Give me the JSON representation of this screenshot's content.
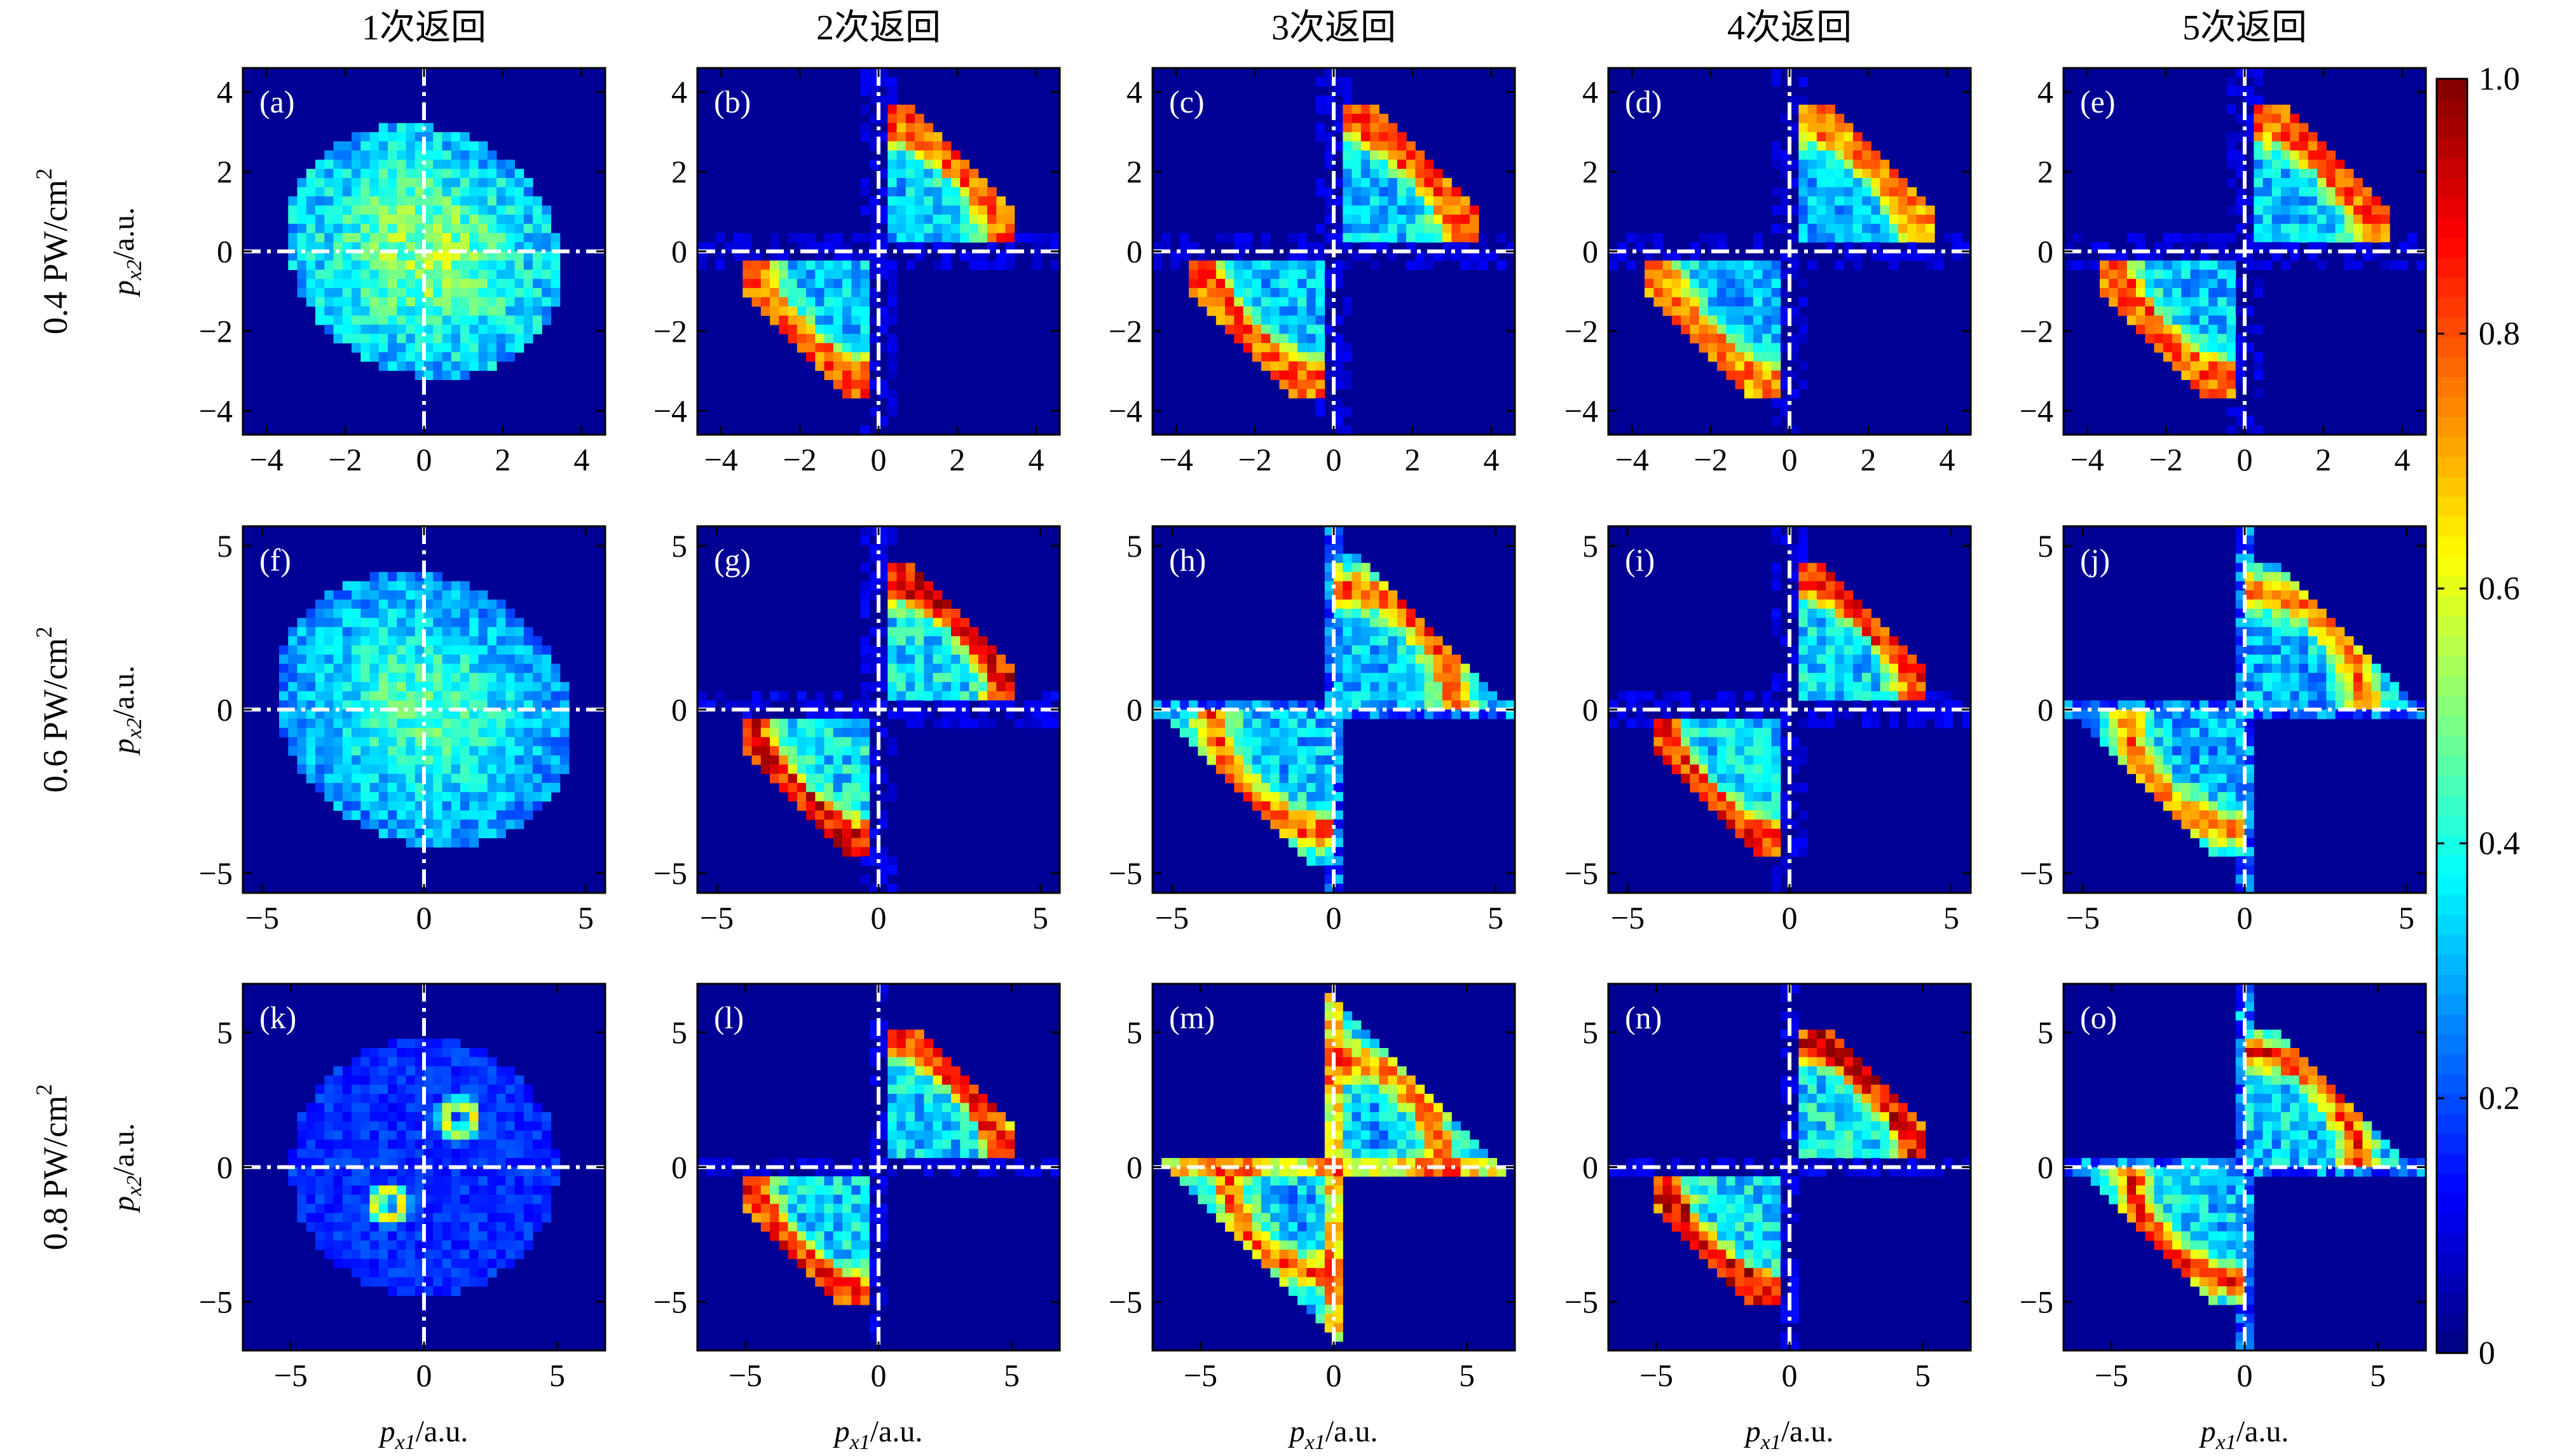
{
  "chart_data": {
    "type": "heatmap",
    "description_grid": "5 columns x 3 rows of 2D momentum correlation density maps",
    "column_titles": [
      "1次返回",
      "2次返回",
      "3次返回",
      "4次返回",
      "5次返回"
    ],
    "row_labels": [
      {
        "value": "0.4",
        "unit": "PW/cm",
        "sup": "2"
      },
      {
        "value": "0.6",
        "unit": "PW/cm",
        "sup": "2"
      },
      {
        "value": "0.8",
        "unit": "PW/cm",
        "sup": "2"
      }
    ],
    "xlabel": {
      "var": "p",
      "sub": "x1",
      "unit": "/a.u."
    },
    "ylabel": {
      "var": "p",
      "sub": "x2",
      "unit": "/a.u."
    },
    "rows": [
      {
        "lim": [
          -4.6,
          4.6
        ],
        "ticks": [
          -4,
          -2,
          0,
          2,
          4
        ],
        "xlim": [
          -4.6,
          4.6
        ]
      },
      {
        "lim": [
          -5.6,
          5.6
        ],
        "ticks": [
          -5,
          0,
          5
        ],
        "xlim": [
          -5.6,
          5.6
        ]
      },
      {
        "lim": [
          -6.8,
          6.8
        ],
        "ticks": [
          -5,
          0,
          5
        ],
        "xlim": [
          -6.8,
          6.8
        ]
      }
    ],
    "panel_labels": [
      "(a)",
      "(b)",
      "(c)",
      "(d)",
      "(e)",
      "(f)",
      "(g)",
      "(h)",
      "(i)",
      "(j)",
      "(k)",
      "(l)",
      "(m)",
      "(n)",
      "(o)"
    ],
    "panels": [
      {
        "id": "a",
        "row": 0,
        "col": 0,
        "pattern": "blob",
        "r": 3.2,
        "peak": 0.7
      },
      {
        "id": "b",
        "row": 0,
        "col": 1,
        "pattern": "split-two",
        "scale": 3.5,
        "peak": 0.85
      },
      {
        "id": "c",
        "row": 0,
        "col": 2,
        "pattern": "split-two-wide",
        "scale": 3.6,
        "peak": 0.85
      },
      {
        "id": "d",
        "row": 0,
        "col": 3,
        "pattern": "split-two",
        "scale": 3.6,
        "peak": 0.8
      },
      {
        "id": "e",
        "row": 0,
        "col": 4,
        "pattern": "split-two",
        "scale": 3.6,
        "peak": 0.85
      },
      {
        "id": "f",
        "row": 1,
        "col": 0,
        "pattern": "blob",
        "r": 4.2,
        "peak": 0.6
      },
      {
        "id": "g",
        "row": 1,
        "col": 1,
        "pattern": "split-two",
        "scale": 4.3,
        "peak": 0.95
      },
      {
        "id": "h",
        "row": 1,
        "col": 2,
        "pattern": "bowtie",
        "scale": 4.4,
        "peak": 0.9
      },
      {
        "id": "i",
        "row": 1,
        "col": 3,
        "pattern": "split-two",
        "scale": 4.3,
        "peak": 0.9
      },
      {
        "id": "j",
        "row": 1,
        "col": 4,
        "pattern": "bowtie",
        "scale": 4.3,
        "peak": 0.85
      },
      {
        "id": "k",
        "row": 2,
        "col": 0,
        "pattern": "blob-rings",
        "r": 5.0,
        "peak": 0.65
      },
      {
        "id": "l",
        "row": 2,
        "col": 1,
        "pattern": "split-two",
        "scale": 5.0,
        "peak": 0.9
      },
      {
        "id": "m",
        "row": 2,
        "col": 2,
        "pattern": "cross",
        "scale": 5.0,
        "peak": 0.95
      },
      {
        "id": "n",
        "row": 2,
        "col": 3,
        "pattern": "split-two",
        "scale": 5.0,
        "peak": 0.95
      },
      {
        "id": "o",
        "row": 2,
        "col": 4,
        "pattern": "bowtie",
        "scale": 5.0,
        "peak": 0.95
      }
    ],
    "colorbar": {
      "min": 0,
      "max": 1.0,
      "ticks": [
        "0",
        "0.2",
        "0.4",
        "0.6",
        "0.8",
        "1.0"
      ],
      "colormap": "jet"
    }
  }
}
